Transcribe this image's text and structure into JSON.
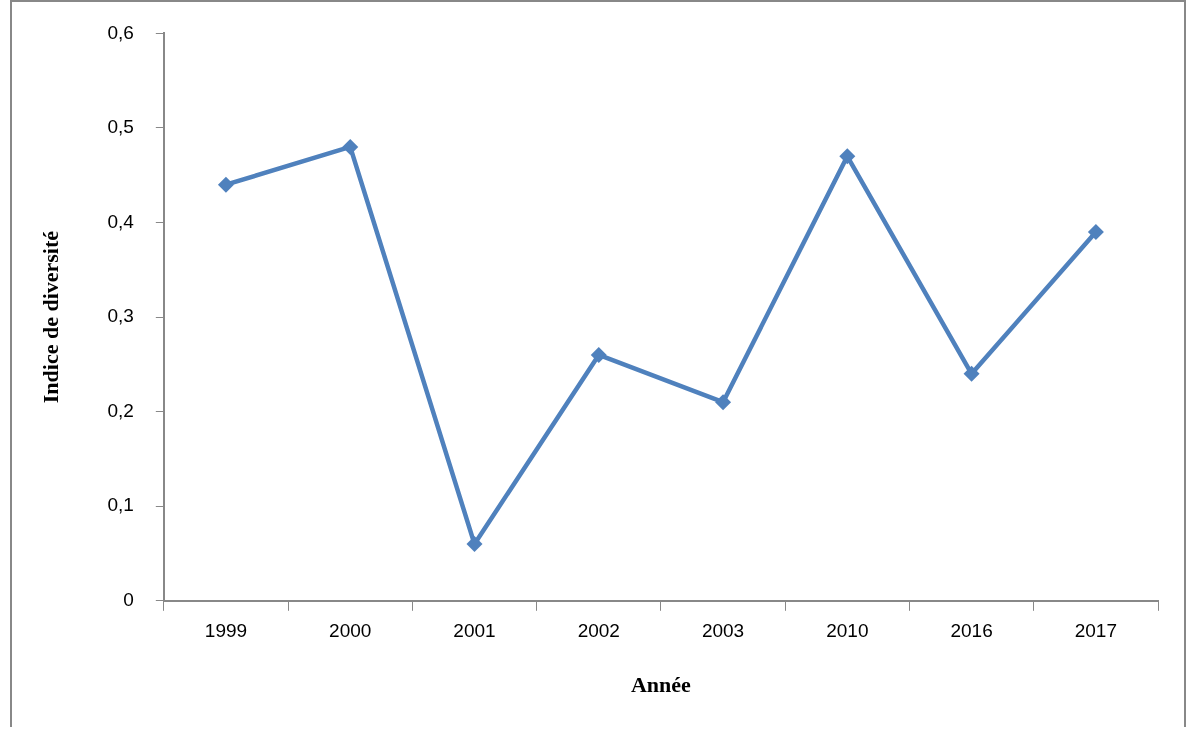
{
  "chart_data": {
    "type": "line",
    "xlabel": "Année",
    "ylabel": "Indice de diversité",
    "categories": [
      "1999",
      "2000",
      "2001",
      "2002",
      "2003",
      "2010",
      "2016",
      "2017"
    ],
    "values": [
      0.44,
      0.48,
      0.06,
      0.26,
      0.21,
      0.47,
      0.24,
      0.39
    ],
    "color": "#4f81bd",
    "marker": "diamond",
    "line_style": "solid",
    "ylim": [
      0,
      0.6
    ],
    "yticks": [
      0,
      {
        "value": 0.1,
        "label": "0,1"
      },
      {
        "value": 0.2,
        "label": "0,2"
      },
      {
        "value": 0.3,
        "label": "0,3"
      },
      {
        "value": 0.4,
        "label": "0,4"
      },
      {
        "value": 0.5,
        "label": "0,5"
      },
      {
        "value": 0.6,
        "label": "0,6"
      }
    ],
    "grid": false,
    "legend": false
  }
}
